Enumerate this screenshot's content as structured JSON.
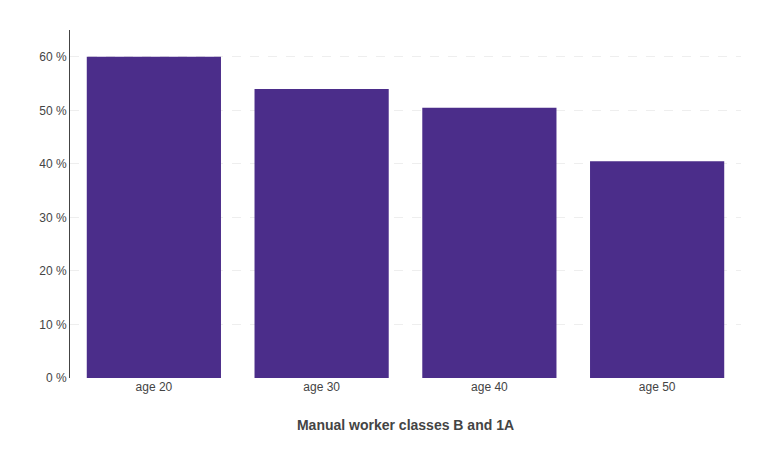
{
  "chart_data": {
    "type": "bar",
    "categories": [
      "age 20",
      "age 30",
      "age 40",
      "age 50"
    ],
    "values": [
      0.6,
      0.54,
      0.505,
      0.405
    ],
    "color": "#4B2D8A",
    "xlabel": "Manual worker classes B and 1A",
    "ylim": [
      0,
      0.65
    ],
    "yticks": [
      {
        "value": 0,
        "label": "0 %"
      },
      {
        "value": 0.1,
        "label": "10 %"
      },
      {
        "value": 0.2,
        "label": "20 %"
      },
      {
        "value": 0.3,
        "label": "30 %"
      },
      {
        "value": 0.4,
        "label": "40 %"
      },
      {
        "value": 0.5,
        "label": "50 %"
      },
      {
        "value": 0.6,
        "label": "60 %"
      }
    ],
    "grid": true
  }
}
